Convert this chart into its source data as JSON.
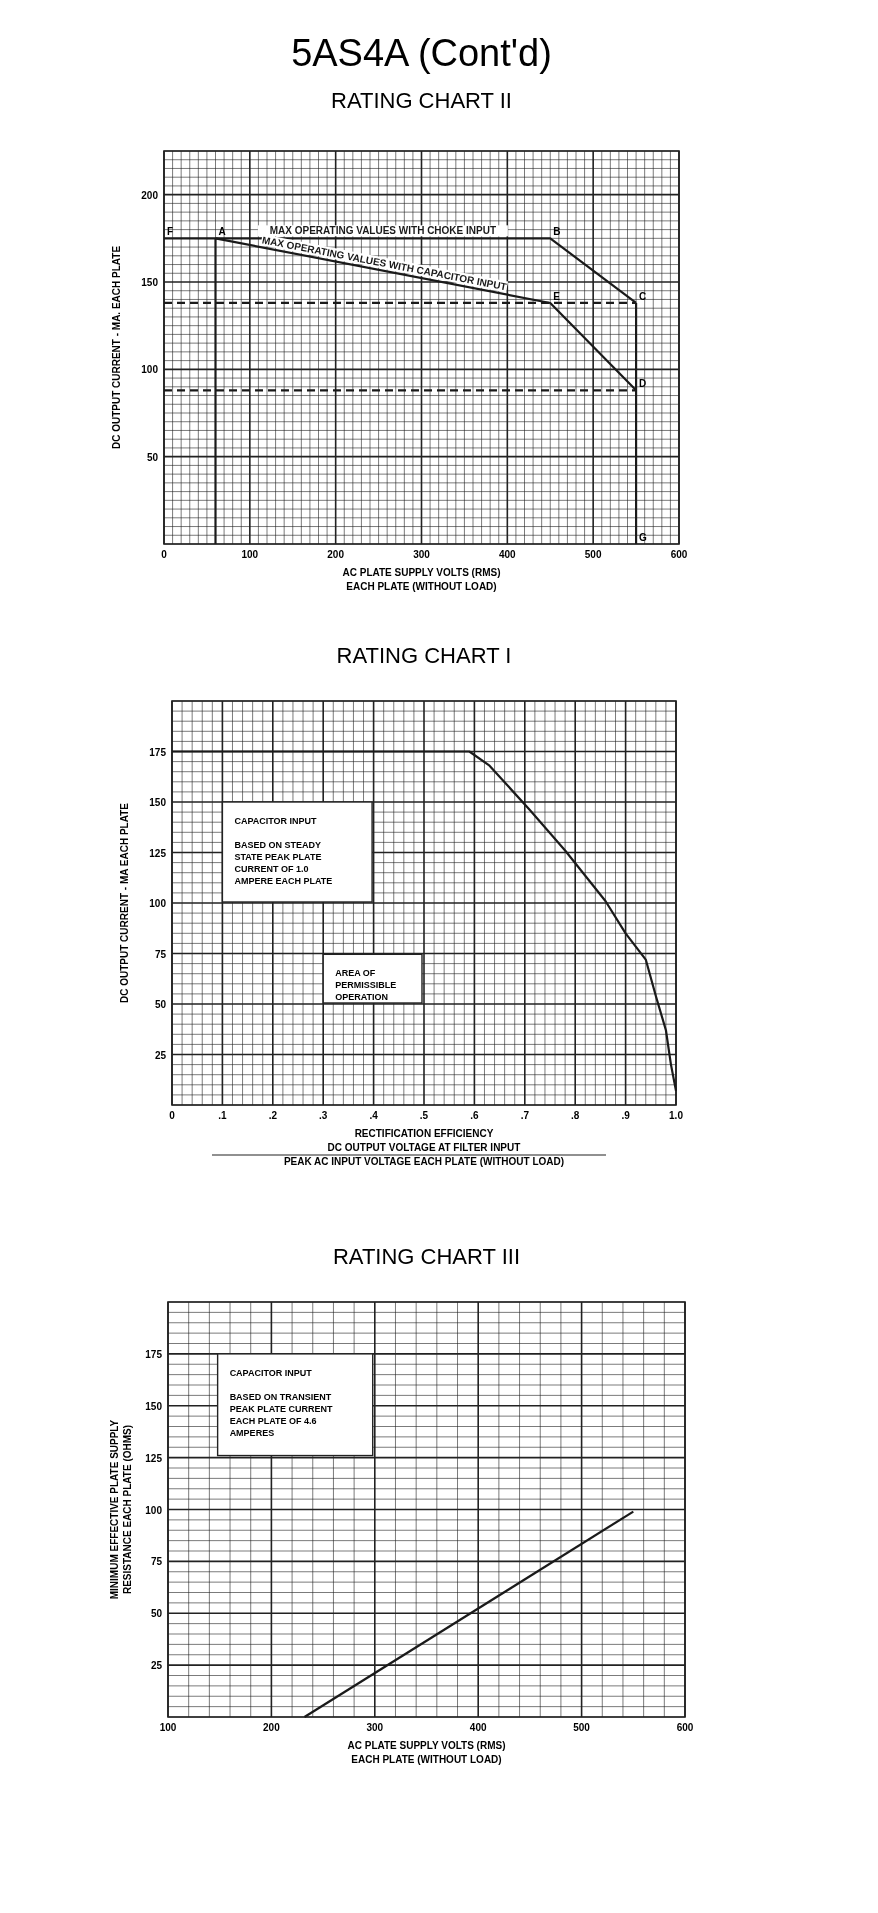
{
  "chart_data": [
    {
      "type": "line",
      "title": "5AS4A (Cont'd)",
      "subtitle": "RATING CHART II",
      "xlabel": "AC PLATE SUPPLY VOLTS (RMS)\nEACH PLATE (WITHOUT LOAD)",
      "ylabel": "DC OUTPUT CURRENT - MA. EACH PLATE",
      "xlim": [
        0,
        600
      ],
      "ylim": [
        0,
        225
      ],
      "xticks": [
        0,
        100,
        200,
        300,
        400,
        500,
        600
      ],
      "yticks": [
        50,
        100,
        150,
        200
      ],
      "grid": true,
      "marker": "none",
      "line_style": "solid",
      "series": [
        {
          "name": "MAX OPERATING VALUES WITH CHOKE INPUT",
          "color": "#1a1a1a",
          "x": [
            0,
            60,
            450,
            550
          ],
          "values": [
            175,
            175,
            175,
            138
          ]
        },
        {
          "name": "MAX OPERATING VALUES WITH CAPACITOR INPUT",
          "color": "#1a1a1a",
          "x": [
            60,
            450,
            550
          ],
          "values": [
            175,
            138,
            88
          ]
        },
        {
          "color": "#1a1a1a",
          "x": [
            60,
            60
          ],
          "values": [
            175,
            0
          ]
        },
        {
          "color": "#1a1a1a",
          "x": [
            550,
            550
          ],
          "values": [
            138,
            0
          ]
        },
        {
          "color": "#1a1a1a",
          "x": [
            0,
            550
          ],
          "values": [
            138,
            138
          ],
          "line_style": "dashed"
        },
        {
          "color": "#1a1a1a",
          "x": [
            0,
            550
          ],
          "values": [
            88,
            88
          ],
          "line_style": "dashed"
        }
      ],
      "annotations": [
        {
          "text": "F",
          "x": 0,
          "y": 175
        },
        {
          "text": "A",
          "x": 60,
          "y": 175
        },
        {
          "text": "B",
          "x": 450,
          "y": 175
        },
        {
          "text": "C",
          "x": 550,
          "y": 138
        },
        {
          "text": "E",
          "x": 450,
          "y": 138
        },
        {
          "text": "D",
          "x": 550,
          "y": 88
        },
        {
          "text": "G",
          "x": 550,
          "y": 0
        }
      ]
    },
    {
      "type": "line",
      "title": "RATING CHART I",
      "xlabel": "RECTIFICATION EFFICIENCY\nDC OUTPUT VOLTAGE AT FILTER INPUT\nPEAK AC INPUT VOLTAGE EACH PLATE (WITHOUT LOAD)",
      "ylabel": "DC OUTPUT CURRENT - MA EACH PLATE",
      "xlim": [
        0,
        1
      ],
      "ylim": [
        0,
        200
      ],
      "xticks": [
        0,
        {
          "value": 0.1,
          "label": ".1"
        },
        {
          "value": 0.2,
          "label": ".2"
        },
        {
          "value": 0.3,
          "label": ".3"
        },
        {
          "value": 0.4,
          "label": ".4"
        },
        {
          "value": 0.5,
          "label": ".5"
        },
        {
          "value": 0.6,
          "label": ".6"
        },
        {
          "value": 0.7,
          "label": ".7"
        },
        {
          "value": 0.8,
          "label": ".8"
        },
        {
          "value": 0.9,
          "label": ".9"
        },
        {
          "value": 1,
          "label": "1.0"
        }
      ],
      "yticks": [
        25,
        50,
        75,
        100,
        125,
        150,
        175
      ],
      "grid": true,
      "marker": "none",
      "line_style": "solid",
      "series": [
        {
          "color": "#1a1a1a",
          "x": [
            0,
            0.59,
            0.63,
            0.71,
            0.78,
            0.86,
            0.9,
            0.94,
            0.96,
            0.98,
            0.99,
            1.0
          ],
          "values": [
            175,
            175,
            168,
            146,
            126,
            101,
            85,
            72,
            54,
            37,
            20,
            7
          ]
        }
      ],
      "annotations": [
        "CAPACITOR INPUT\n\nBASED ON STEADY\nSTATE PEAK PLATE\nCURRENT OF 1.0\nAMPERE EACH PLATE",
        "AREA OF\nPERMISSIBLE\nOPERATION"
      ]
    },
    {
      "type": "line",
      "title": "RATING CHART III",
      "xlabel": "AC PLATE SUPPLY VOLTS (RMS)\nEACH PLATE (WITHOUT LOAD)",
      "ylabel": "MINIMUM EFFECTIVE PLATE SUPPLY\nRESISTANCE EACH PLATE (OHMS)",
      "xlim": [
        100,
        600
      ],
      "ylim": [
        0,
        200
      ],
      "xticks": [
        100,
        200,
        300,
        400,
        500,
        600
      ],
      "yticks": [
        25,
        50,
        75,
        100,
        125,
        150,
        175
      ],
      "grid": true,
      "marker": "none",
      "line_style": "solid",
      "series": [
        {
          "color": "#1a1a1a",
          "x": [
            232,
            550
          ],
          "values": [
            0,
            99
          ]
        }
      ],
      "annotations": [
        "CAPACITOR INPUT\n\nBASED ON TRANSIENT\nPEAK PLATE CURRENT\nEACH PLATE OF 4.6\nAMPERES"
      ]
    }
  ]
}
